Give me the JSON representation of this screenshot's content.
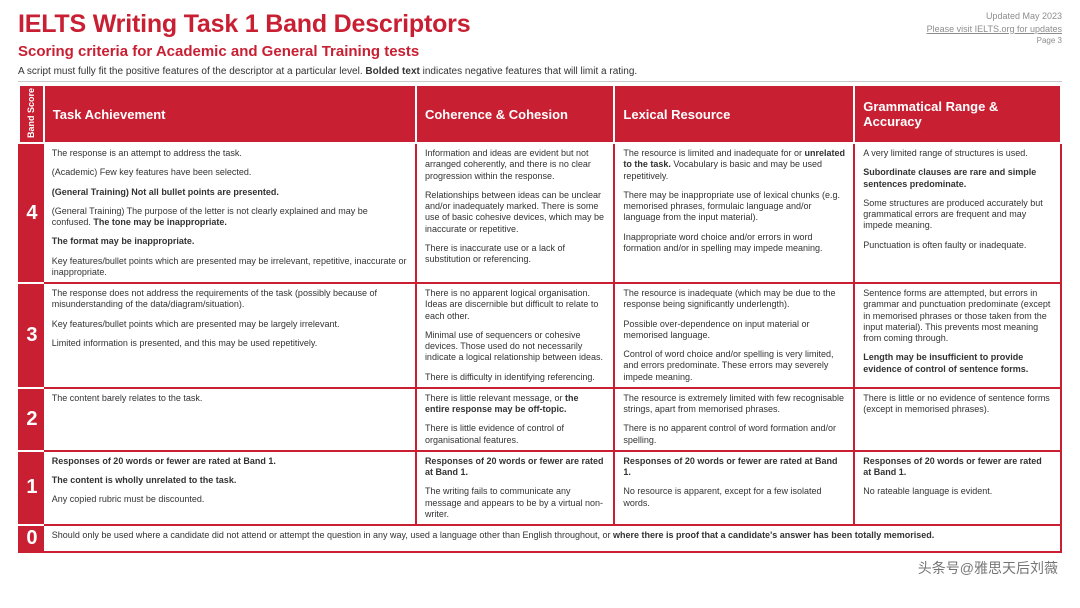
{
  "title": "IELTS Writing Task 1 Band Descriptors",
  "subtitle": "Scoring criteria for Academic and General Training tests",
  "meta": {
    "updated": "Updated May 2023",
    "visit": "Please visit IELTS.org for updates",
    "page": "Page 3"
  },
  "intro_prefix": "A script must fully fit the positive features of the descriptor at a particular level. ",
  "intro_bold": "Bolded text",
  "intro_suffix": " indicates negative features that will limit a rating.",
  "headers": {
    "band": "Band Score",
    "ta": "Task Achievement",
    "cc": "Coherence & Cohesion",
    "lr": "Lexical Resource",
    "gr": "Grammatical Range & Accuracy"
  },
  "row4": {
    "band": "4",
    "ta_p1": "The response is an attempt to address the task.",
    "ta_p2": "(Academic) Few key features have been selected.",
    "ta_p3_b": "(General Training) Not all bullet points are presented.",
    "ta_p4_pre": "(General Training) The purpose of the letter is not clearly explained and may be confused. ",
    "ta_p4_b": "The tone may be inappropriate.",
    "ta_p5_b": "The format may be inappropriate.",
    "ta_p6": "Key features/bullet points which are presented may be irrelevant, repetitive, inaccurate or inappropriate.",
    "cc_p1": "Information and ideas are evident but not arranged coherently, and there is no clear progression within the response.",
    "cc_p2": "Relationships between ideas can be unclear and/or inadequately marked. There is some use of basic cohesive devices, which may be inaccurate or repetitive.",
    "cc_p3": "There is inaccurate use or a lack of substitution or referencing.",
    "lr_p1_pre": "The resource is limited and inadequate for or ",
    "lr_p1_b": "unrelated to the task.",
    "lr_p1_post": " Vocabulary is basic and may be used repetitively.",
    "lr_p2": "There may be inappropriate use of lexical chunks (e.g. memorised phrases, formulaic language and/or language from the input material).",
    "lr_p3": "Inappropriate word choice and/or errors in word formation and/or in spelling may impede meaning.",
    "gr_p1": "A very limited range of structures is used.",
    "gr_p2_b": "Subordinate clauses are rare and simple sentences predominate.",
    "gr_p3": "Some structures are produced accurately but grammatical errors are frequent and may impede meaning.",
    "gr_p4": "Punctuation is often faulty or inadequate."
  },
  "row3": {
    "band": "3",
    "ta_p1": "The response does not address the requirements of the task (possibly because of misunderstanding of the data/diagram/situation).",
    "ta_p2": "Key features/bullet points which are presented may be largely irrelevant.",
    "ta_p3": "Limited information is presented, and this may be used repetitively.",
    "cc_p1": "There is no apparent logical organisation. Ideas are discernible but difficult to relate to each other.",
    "cc_p2": "Minimal use of sequencers or cohesive devices. Those used do not necessarily indicate a logical relationship between ideas.",
    "cc_p3": "There is difficulty in identifying referencing.",
    "lr_p1": "The resource is inadequate (which may be due to the response being significantly underlength).",
    "lr_p2": "Possible over-dependence on input material or memorised language.",
    "lr_p3": "Control of word choice and/or spelling is very limited, and errors predominate. These errors may severely impede meaning.",
    "gr_p1": "Sentence forms are attempted, but errors in grammar and punctuation predominate (except in memorised phrases or those taken from the input material). This prevents most meaning from coming through.",
    "gr_p2_b": "Length may be insufficient to provide evidence of control of sentence forms."
  },
  "row2": {
    "band": "2",
    "ta_p1": "The content barely relates to the task.",
    "cc_p1_pre": "There is little relevant message, or ",
    "cc_p1_b": "the entire response may be off-topic.",
    "cc_p2": "There is little evidence of control of organisational features.",
    "lr_p1": "The resource is extremely limited with few recognisable strings, apart from memorised phrases.",
    "lr_p2": "There is no apparent control of word formation and/or spelling.",
    "gr_p1": "There is little or no evidence of sentence forms (except in memorised phrases)."
  },
  "row1": {
    "band": "1",
    "ta_p1_b": "Responses of 20 words or fewer are rated at Band 1.",
    "ta_p2_b": "The content is wholly unrelated to the task.",
    "ta_p3": "Any copied rubric must be discounted.",
    "cc_p1_b": "Responses of 20 words or fewer are rated at Band 1.",
    "cc_p2": "The writing fails to communicate any message and appears to be by a virtual non-writer.",
    "lr_p1_b": "Responses of 20 words or fewer are rated at Band 1.",
    "lr_p2": "No resource is apparent, except for a few isolated words.",
    "gr_p1_b": "Responses of 20 words or fewer are rated at Band 1.",
    "gr_p2": "No rateable language is evident."
  },
  "row0": {
    "band": "0",
    "text_pre": "Should only be used where a candidate did not attend or attempt the question in any way, used a language other than English throughout, or ",
    "text_b": "where there is proof that a candidate's answer has been totally memorised."
  },
  "watermark": "头条号@雅思天后刘薇"
}
